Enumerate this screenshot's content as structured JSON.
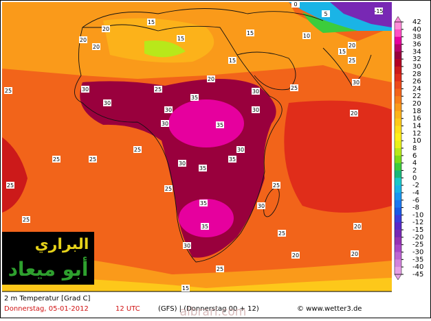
{
  "colorbar": {
    "ticks": [
      42,
      40,
      38,
      36,
      34,
      32,
      30,
      28,
      26,
      24,
      22,
      20,
      18,
      16,
      14,
      12,
      10,
      8,
      6,
      4,
      2,
      0,
      -2,
      -4,
      -6,
      -8,
      -10,
      -12,
      -15,
      -20,
      -25,
      -30,
      -35,
      -40,
      -45
    ],
    "colors": [
      "#ff8cd9",
      "#ff4dc4",
      "#e6009e",
      "#b8006b",
      "#99003d",
      "#b30024",
      "#cc1a1a",
      "#e02d1a",
      "#ec4a1a",
      "#f2641a",
      "#f77e1a",
      "#fa9a1a",
      "#fcb21a",
      "#fdc81a",
      "#fede1a",
      "#fff01a",
      "#e8f01a",
      "#b8e81a",
      "#7ddc1a",
      "#3ccc3c",
      "#1ab87a",
      "#1ac8c8",
      "#1ab4e6",
      "#1a96f0",
      "#1a78f0",
      "#1a5ae6",
      "#3c3cdc",
      "#5a28c8",
      "#7828b4",
      "#9632b4",
      "#aa46c8",
      "#be64d2",
      "#d282dc",
      "#e6a0e6"
    ]
  },
  "map_labels": [
    "15",
    "15",
    "15",
    "20",
    "20",
    "20",
    "15",
    "0",
    "5",
    "-15",
    "10",
    "15",
    "20",
    "25",
    "25",
    "30",
    "30",
    "25",
    "20",
    "30",
    "35",
    "30",
    "35",
    "30",
    "25",
    "20",
    "30",
    "25",
    "25",
    "25",
    "30",
    "35",
    "30",
    "25",
    "25",
    "30",
    "35",
    "35",
    "30",
    "25",
    "25",
    "20",
    "20",
    "25",
    "15",
    "20",
    "25",
    "35",
    "30"
  ],
  "footer": {
    "variable": "2 m Temperatur [Grad C]",
    "date": "Donnerstag, 05-01-2012",
    "time": "12 UTC",
    "model": "(GFS) | (Donnerstag 00 + 12)",
    "credit": "© www.wetter3.de"
  },
  "watermark": {
    "site": "albrari.com",
    "line1": "البراري",
    "line2": "أبو ميعاد"
  }
}
